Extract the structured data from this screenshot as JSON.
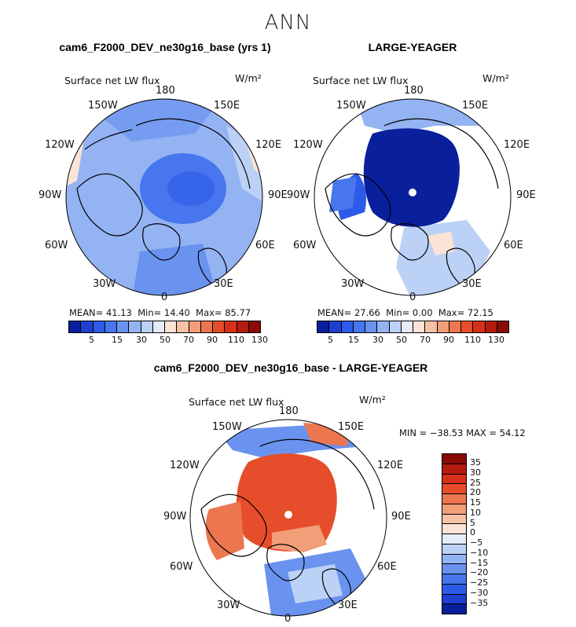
{
  "main_title": "ANN",
  "panels": [
    {
      "title": "cam6_F2000_DEV_ne30g16_base (yrs 1)",
      "variable": "Surface net LW flux",
      "units": "W/m²",
      "lon_labels": {
        "n": "180",
        "nw": "150W",
        "ne": "150E",
        "wnw": "120W",
        "ene": "120E",
        "w": "90W",
        "e": "90E",
        "wsw": "60W",
        "ese": "60E",
        "sw": "30W",
        "se": "30E",
        "s": "0"
      },
      "stats": {
        "mean_label": "MEAN=",
        "mean": "41.13",
        "min_label": "Min=",
        "min": "14.40",
        "max_label": "Max=",
        "max": "85.77"
      },
      "colorbar": {
        "colors": [
          "#0a1f9c",
          "#1e3fcf",
          "#2d5ae8",
          "#4776ee",
          "#6a93f0",
          "#94b3f3",
          "#bcd1f6",
          "#e6ecf7",
          "#fbe3d6",
          "#f7c1a5",
          "#f29e79",
          "#ec7650",
          "#e64d2a",
          "#d7301a",
          "#b51c10",
          "#8a0a06"
        ],
        "labels": [
          "5",
          "15",
          "30",
          "50",
          "70",
          "90",
          "110",
          "130"
        ]
      }
    },
    {
      "title": "LARGE-YEAGER",
      "variable": "Surface net LW flux",
      "units": "W/m²",
      "lon_labels": {
        "n": "180",
        "nw": "150W",
        "ne": "150E",
        "wnw": "120W",
        "ene": "120E",
        "w": "90W",
        "e": "90E",
        "wsw": "60W",
        "ese": "60E",
        "sw": "30W",
        "se": "30E",
        "s": "0"
      },
      "stats": {
        "mean_label": "MEAN=",
        "mean": "27.66",
        "min_label": "Min=",
        "min": "0.00",
        "max_label": "Max=",
        "max": "72.15"
      },
      "colorbar": {
        "colors": [
          "#0a1f9c",
          "#1e3fcf",
          "#2d5ae8",
          "#4776ee",
          "#6a93f0",
          "#94b3f3",
          "#bcd1f6",
          "#e6ecf7",
          "#fbe3d6",
          "#f7c1a5",
          "#f29e79",
          "#ec7650",
          "#e64d2a",
          "#d7301a",
          "#b51c10",
          "#8a0a06"
        ],
        "labels": [
          "5",
          "15",
          "30",
          "50",
          "70",
          "90",
          "110",
          "130"
        ]
      }
    },
    {
      "title": "cam6_F2000_DEV_ne30g16_base - LARGE-YEAGER",
      "variable": "Surface net LW flux",
      "units": "W/m²",
      "lon_labels": {
        "n": "180",
        "nw": "150W",
        "ne": "150E",
        "wnw": "120W",
        "ene": "120E",
        "w": "90W",
        "e": "90E",
        "wsw": "60W",
        "ese": "60E",
        "sw": "30W",
        "se": "30E",
        "s": "0"
      },
      "stats_text": "MIN = −38.53 MAX =  54.12",
      "colorbar": {
        "colors": [
          "#8a0a06",
          "#b51c10",
          "#d7301a",
          "#e64d2a",
          "#ec7650",
          "#f29e79",
          "#f7c1a5",
          "#fbe3d6",
          "#e6ecf7",
          "#bcd1f6",
          "#94b3f3",
          "#6a93f0",
          "#4776ee",
          "#2d5ae8",
          "#1e3fcf",
          "#0a1f9c"
        ],
        "labels": [
          "35",
          "30",
          "25",
          "20",
          "15",
          "10",
          "5",
          "0",
          "−5",
          "−10",
          "−15",
          "−20",
          "−25",
          "−30",
          "−35"
        ]
      }
    }
  ]
}
